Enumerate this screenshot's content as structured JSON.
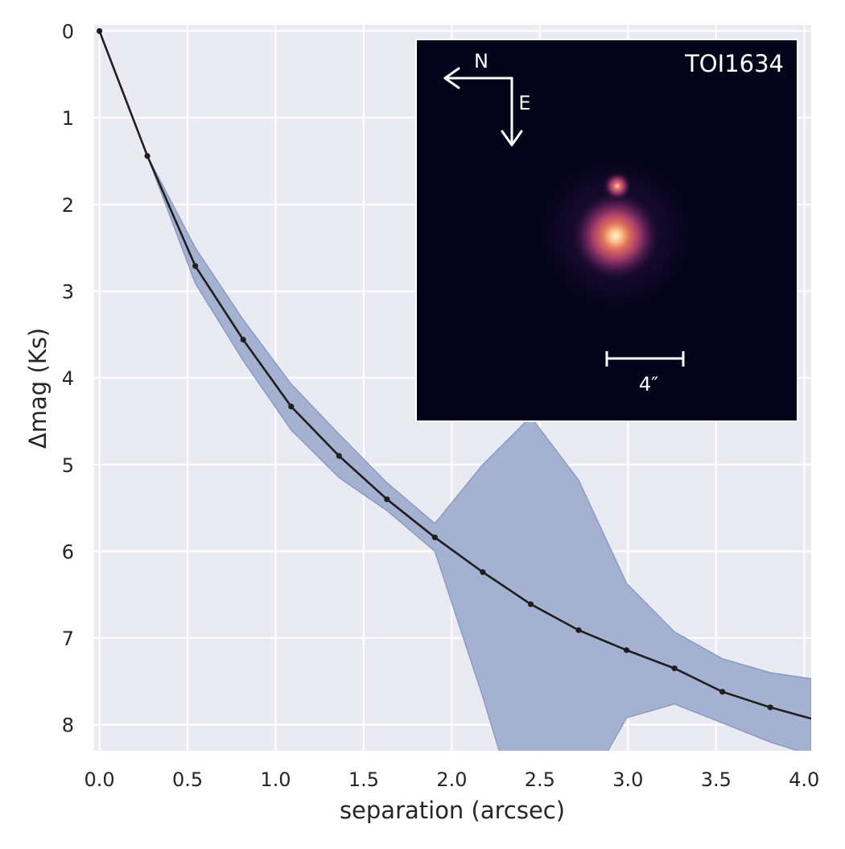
{
  "chart_data": {
    "type": "line",
    "title": "",
    "xlabel": "separation (arcsec)",
    "ylabel": "Δmag (Ks)",
    "xlim": [
      -0.03,
      4.04
    ],
    "ylim": [
      8.3,
      -0.07
    ],
    "y_inverted": true,
    "grid": true,
    "xticks": [
      0.0,
      0.5,
      1.0,
      1.5,
      2.0,
      2.5,
      3.0,
      3.5,
      4.0
    ],
    "xtick_labels": [
      "0.0",
      "0.5",
      "1.0",
      "1.5",
      "2.0",
      "2.5",
      "3.0",
      "3.5",
      "4.0"
    ],
    "yticks": [
      0,
      1,
      2,
      3,
      4,
      5,
      6,
      7,
      8
    ],
    "ytick_labels": [
      "0",
      "1",
      "2",
      "3",
      "4",
      "5",
      "6",
      "7",
      "8"
    ],
    "colors": {
      "line": "#1f1f1f",
      "band": "#a1afd0",
      "band_edge": "#8796c4",
      "plot_bg": "#eaeaf2",
      "grid": "#ffffff",
      "inset_bg": "#03031a"
    },
    "series": [
      {
        "x": [
          0.0,
          0.272,
          0.544,
          0.816,
          1.088,
          1.36,
          1.632,
          1.904,
          2.176,
          2.448,
          2.72,
          2.992,
          3.264,
          3.536,
          3.808,
          4.04
        ],
        "values": [
          0.0,
          1.44,
          2.71,
          3.56,
          4.33,
          4.9,
          5.4,
          5.84,
          6.24,
          6.61,
          6.91,
          7.14,
          7.35,
          7.62,
          7.8,
          7.93
        ],
        "lower": [
          0.0,
          1.44,
          2.5,
          3.33,
          4.07,
          4.65,
          5.21,
          5.68,
          5.0,
          4.45,
          5.18,
          6.37,
          6.93,
          7.24,
          7.4,
          7.47
        ],
        "upper": [
          0.0,
          1.44,
          2.91,
          3.8,
          4.6,
          5.15,
          5.53,
          6.0,
          7.68,
          9.5,
          8.9,
          7.92,
          7.76,
          7.98,
          8.2,
          8.35
        ]
      }
    ],
    "inset": {
      "label": "TOI1634",
      "compass_n": "N",
      "compass_e": "E",
      "scale_label": "4″"
    }
  }
}
